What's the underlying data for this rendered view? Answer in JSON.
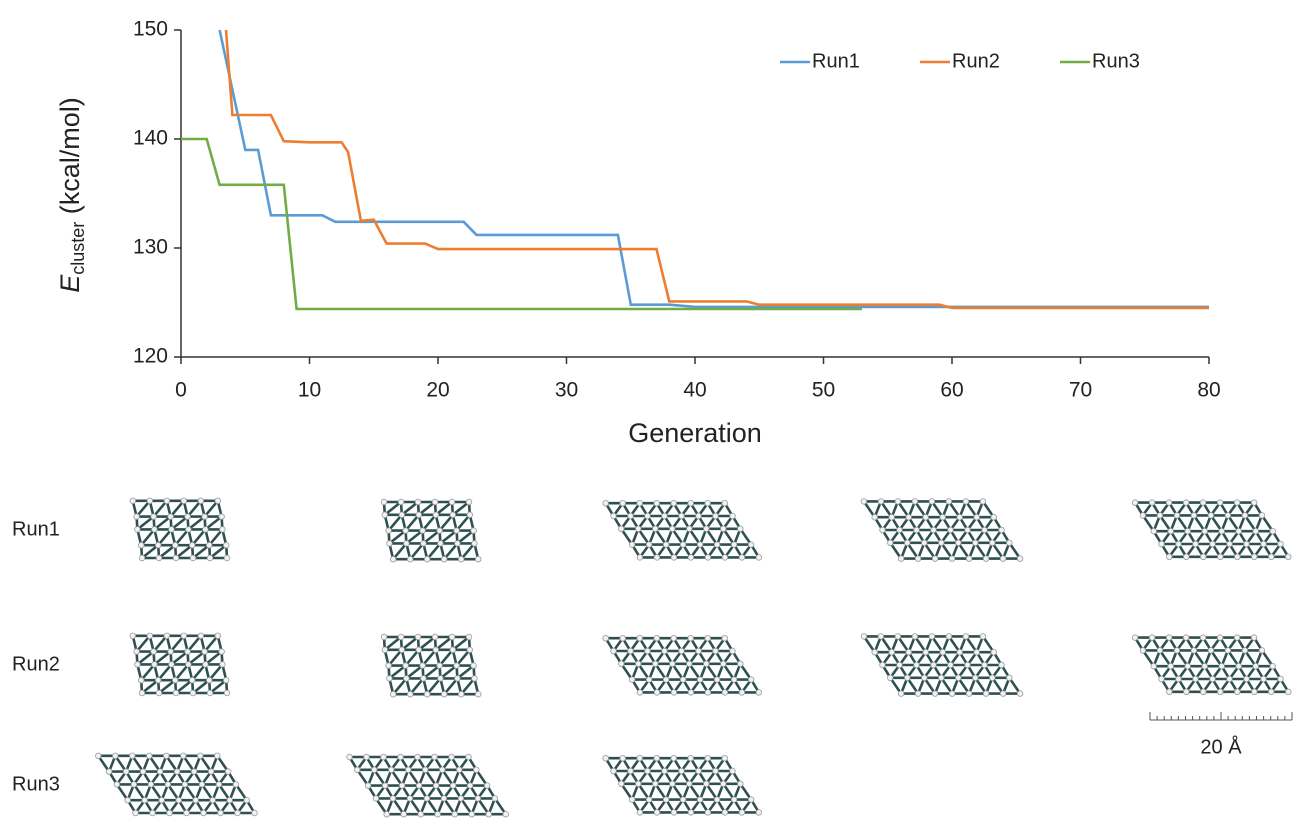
{
  "chart_data": {
    "type": "line",
    "ylabel": {
      "symbol": "E",
      "subscript": "cluster",
      "unit": "(kcal/mol)"
    },
    "xlabel": "Generation",
    "xlim": [
      0,
      80
    ],
    "xticks": [
      0,
      10,
      20,
      30,
      40,
      50,
      60,
      70,
      80
    ],
    "ylim": [
      120,
      150
    ],
    "yticks": [
      120,
      130,
      140,
      150
    ],
    "legend": "top-right",
    "series": [
      {
        "name": "Run1",
        "color": "#5b9bd5",
        "x": [
          3,
          5,
          6,
          7,
          11,
          12,
          22,
          23,
          34,
          35,
          38,
          40,
          80
        ],
        "values": [
          150,
          139,
          139,
          133,
          133,
          132.4,
          132.4,
          131.2,
          131.2,
          124.8,
          124.8,
          124.6,
          124.6
        ]
      },
      {
        "name": "Run2",
        "color": "#ed7d31",
        "x": [
          3.5,
          4,
          7,
          8,
          10,
          12.5,
          13,
          14,
          15,
          16,
          19,
          20,
          37,
          38,
          44,
          45,
          59,
          60,
          80
        ],
        "values": [
          150,
          142.2,
          142.2,
          139.8,
          139.7,
          139.7,
          138.8,
          132.5,
          132.6,
          130.4,
          130.4,
          129.9,
          129.9,
          125.1,
          125.1,
          124.8,
          124.8,
          124.5,
          124.5
        ]
      },
      {
        "name": "Run3",
        "color": "#70ad47",
        "x": [
          0,
          2,
          3,
          8,
          9,
          53
        ],
        "values": [
          140,
          140,
          135.8,
          135.8,
          124.4,
          124.4
        ]
      }
    ]
  },
  "structures": {
    "rows": [
      "Run1",
      "Run2",
      "Run3"
    ],
    "scale_bar": "20 Å"
  }
}
